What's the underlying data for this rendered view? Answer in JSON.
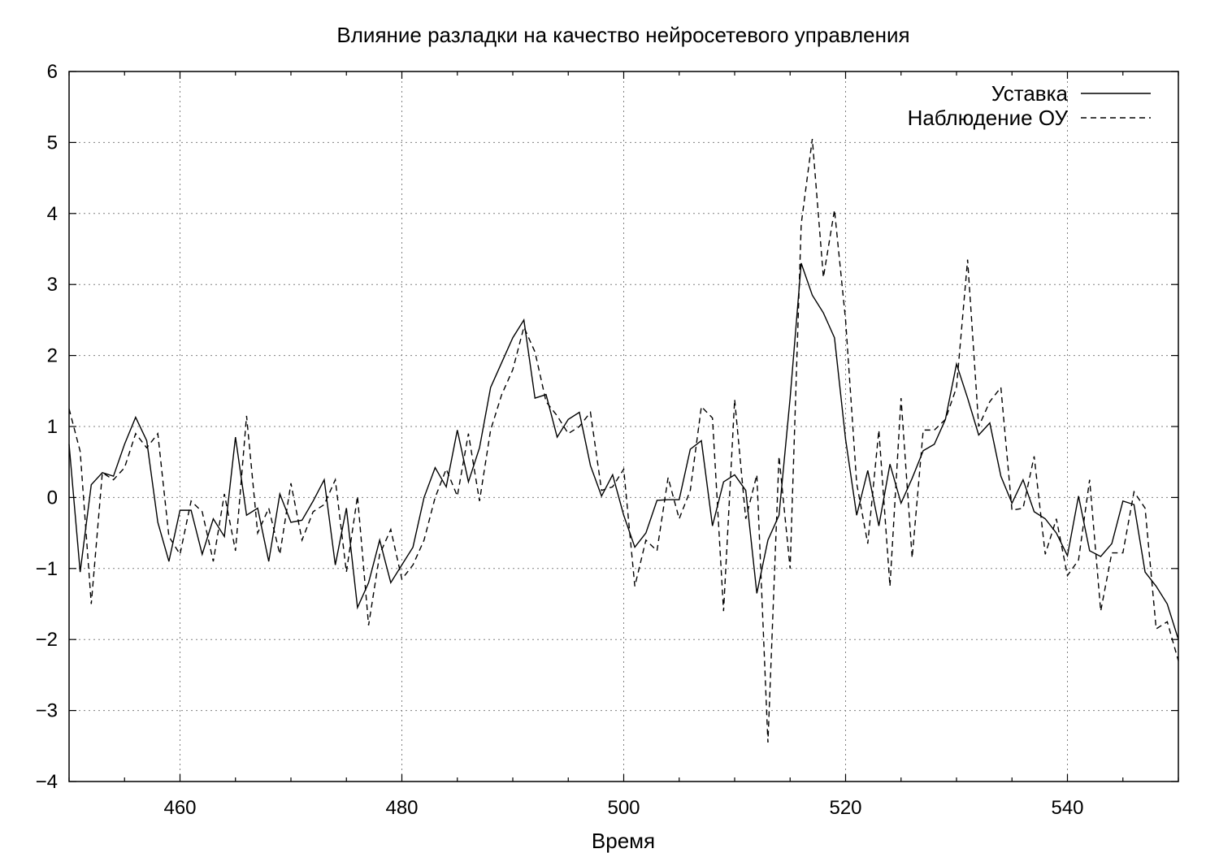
{
  "chart_data": {
    "type": "line",
    "title": "Влияние разладки на качество нейросетевого управления",
    "xlabel": "Время",
    "ylabel": "",
    "xlim": [
      450,
      550
    ],
    "ylim": [
      -4,
      6
    ],
    "xticks": [
      460,
      480,
      500,
      520,
      540
    ],
    "yticks": [
      -4,
      -3,
      -2,
      -1,
      0,
      1,
      2,
      3,
      4,
      5,
      6
    ],
    "ytick_labels": [
      "−4",
      "−3",
      "−2",
      "−1",
      "0",
      "1",
      "2",
      "3",
      "4",
      "5",
      "6"
    ],
    "grid": true,
    "legend_position": "top-right",
    "series": [
      {
        "name": "Уставка",
        "style": "solid",
        "color": "#000000",
        "points": [
          [
            450,
            0.75
          ],
          [
            451,
            -1.05
          ],
          [
            452,
            0.18
          ],
          [
            453,
            0.35
          ],
          [
            454,
            0.3
          ],
          [
            455,
            0.75
          ],
          [
            456,
            1.13
          ],
          [
            457,
            0.8
          ],
          [
            458,
            -0.35
          ],
          [
            459,
            -0.9
          ],
          [
            460,
            -0.18
          ],
          [
            461,
            -0.18
          ],
          [
            462,
            -0.8
          ],
          [
            463,
            -0.3
          ],
          [
            464,
            -0.55
          ],
          [
            465,
            0.85
          ],
          [
            466,
            -0.25
          ],
          [
            467,
            -0.15
          ],
          [
            468,
            -0.9
          ],
          [
            469,
            0.05
          ],
          [
            470,
            -0.35
          ],
          [
            471,
            -0.32
          ],
          [
            472,
            -0.05
          ],
          [
            473,
            0.25
          ],
          [
            474,
            -0.95
          ],
          [
            475,
            -0.15
          ],
          [
            476,
            -1.55
          ],
          [
            477,
            -1.2
          ],
          [
            478,
            -0.6
          ],
          [
            479,
            -1.2
          ],
          [
            480,
            -0.95
          ],
          [
            481,
            -0.7
          ],
          [
            482,
            0.0
          ],
          [
            483,
            0.42
          ],
          [
            484,
            0.15
          ],
          [
            485,
            0.95
          ],
          [
            486,
            0.22
          ],
          [
            487,
            0.7
          ],
          [
            488,
            1.55
          ],
          [
            489,
            1.9
          ],
          [
            490,
            2.25
          ],
          [
            491,
            2.5
          ],
          [
            492,
            1.4
          ],
          [
            493,
            1.45
          ],
          [
            494,
            0.85
          ],
          [
            495,
            1.1
          ],
          [
            496,
            1.2
          ],
          [
            497,
            0.45
          ],
          [
            498,
            0.02
          ],
          [
            499,
            0.32
          ],
          [
            500,
            -0.25
          ],
          [
            501,
            -0.7
          ],
          [
            502,
            -0.5
          ],
          [
            503,
            -0.04
          ],
          [
            504,
            -0.03
          ],
          [
            505,
            -0.03
          ],
          [
            506,
            0.68
          ],
          [
            507,
            0.8
          ],
          [
            508,
            -0.4
          ],
          [
            509,
            0.22
          ],
          [
            510,
            0.32
          ],
          [
            511,
            0.1
          ],
          [
            512,
            -1.35
          ],
          [
            513,
            -0.6
          ],
          [
            514,
            -0.25
          ],
          [
            515,
            1.4
          ],
          [
            516,
            3.3
          ],
          [
            517,
            2.85
          ],
          [
            518,
            2.6
          ],
          [
            519,
            2.25
          ],
          [
            520,
            0.82
          ],
          [
            521,
            -0.25
          ],
          [
            522,
            0.38
          ],
          [
            523,
            -0.4
          ],
          [
            524,
            0.47
          ],
          [
            525,
            -0.08
          ],
          [
            526,
            0.27
          ],
          [
            527,
            0.66
          ],
          [
            528,
            0.75
          ],
          [
            529,
            1.1
          ],
          [
            530,
            1.88
          ],
          [
            531,
            1.4
          ],
          [
            532,
            0.88
          ],
          [
            533,
            1.05
          ],
          [
            534,
            0.3
          ],
          [
            535,
            -0.08
          ],
          [
            536,
            0.25
          ],
          [
            537,
            -0.2
          ],
          [
            538,
            -0.3
          ],
          [
            539,
            -0.5
          ],
          [
            540,
            -0.82
          ],
          [
            541,
            0.02
          ],
          [
            542,
            -0.75
          ],
          [
            543,
            -0.83
          ],
          [
            544,
            -0.65
          ],
          [
            545,
            -0.05
          ],
          [
            546,
            -0.1
          ],
          [
            547,
            -1.05
          ],
          [
            548,
            -1.25
          ],
          [
            549,
            -1.5
          ],
          [
            550,
            -2.0
          ]
        ]
      },
      {
        "name": "Наблюдение ОУ",
        "style": "dashed",
        "color": "#000000",
        "points": [
          [
            450,
            1.25
          ],
          [
            451,
            0.65
          ],
          [
            452,
            -1.5
          ],
          [
            453,
            0.35
          ],
          [
            454,
            0.25
          ],
          [
            455,
            0.42
          ],
          [
            456,
            0.9
          ],
          [
            457,
            0.7
          ],
          [
            458,
            0.9
          ],
          [
            459,
            -0.55
          ],
          [
            460,
            -0.8
          ],
          [
            461,
            -0.05
          ],
          [
            462,
            -0.2
          ],
          [
            463,
            -0.9
          ],
          [
            464,
            0.05
          ],
          [
            465,
            -0.75
          ],
          [
            466,
            1.15
          ],
          [
            467,
            -0.5
          ],
          [
            468,
            -0.15
          ],
          [
            469,
            -0.8
          ],
          [
            470,
            0.2
          ],
          [
            471,
            -0.6
          ],
          [
            472,
            -0.2
          ],
          [
            473,
            -0.1
          ],
          [
            474,
            0.25
          ],
          [
            475,
            -1.05
          ],
          [
            476,
            0.02
          ],
          [
            477,
            -1.8
          ],
          [
            478,
            -0.8
          ],
          [
            479,
            -0.45
          ],
          [
            480,
            -1.15
          ],
          [
            481,
            -0.95
          ],
          [
            482,
            -0.6
          ],
          [
            483,
            0.0
          ],
          [
            484,
            0.4
          ],
          [
            485,
            0.02
          ],
          [
            486,
            0.9
          ],
          [
            487,
            -0.05
          ],
          [
            488,
            0.95
          ],
          [
            489,
            1.45
          ],
          [
            490,
            1.8
          ],
          [
            491,
            2.4
          ],
          [
            492,
            2.05
          ],
          [
            493,
            1.35
          ],
          [
            494,
            1.15
          ],
          [
            495,
            0.9
          ],
          [
            496,
            1.0
          ],
          [
            497,
            1.2
          ],
          [
            498,
            0.1
          ],
          [
            499,
            0.15
          ],
          [
            500,
            0.4
          ],
          [
            501,
            -1.25
          ],
          [
            502,
            -0.6
          ],
          [
            503,
            -0.75
          ],
          [
            504,
            0.28
          ],
          [
            505,
            -0.3
          ],
          [
            506,
            0.1
          ],
          [
            507,
            1.28
          ],
          [
            508,
            1.12
          ],
          [
            509,
            -1.6
          ],
          [
            510,
            1.38
          ],
          [
            511,
            -0.3
          ],
          [
            512,
            0.32
          ],
          [
            513,
            -3.45
          ],
          [
            514,
            0.58
          ],
          [
            515,
            -1.0
          ],
          [
            516,
            3.85
          ],
          [
            517,
            5.05
          ],
          [
            518,
            3.1
          ],
          [
            519,
            4.05
          ],
          [
            520,
            2.5
          ],
          [
            521,
            0.2
          ],
          [
            522,
            -0.65
          ],
          [
            523,
            0.95
          ],
          [
            524,
            -1.25
          ],
          [
            525,
            1.4
          ],
          [
            526,
            -0.85
          ],
          [
            527,
            0.95
          ],
          [
            528,
            0.95
          ],
          [
            529,
            1.1
          ],
          [
            530,
            1.55
          ],
          [
            531,
            3.35
          ],
          [
            532,
            1.0
          ],
          [
            533,
            1.35
          ],
          [
            534,
            1.55
          ],
          [
            535,
            -0.18
          ],
          [
            536,
            -0.15
          ],
          [
            537,
            0.58
          ],
          [
            538,
            -0.8
          ],
          [
            539,
            -0.3
          ],
          [
            540,
            -1.1
          ],
          [
            541,
            -0.88
          ],
          [
            542,
            0.25
          ],
          [
            543,
            -1.6
          ],
          [
            544,
            -0.78
          ],
          [
            545,
            -0.78
          ],
          [
            546,
            0.08
          ],
          [
            547,
            -0.15
          ],
          [
            548,
            -1.85
          ],
          [
            549,
            -1.75
          ],
          [
            550,
            -2.3
          ]
        ]
      }
    ]
  }
}
